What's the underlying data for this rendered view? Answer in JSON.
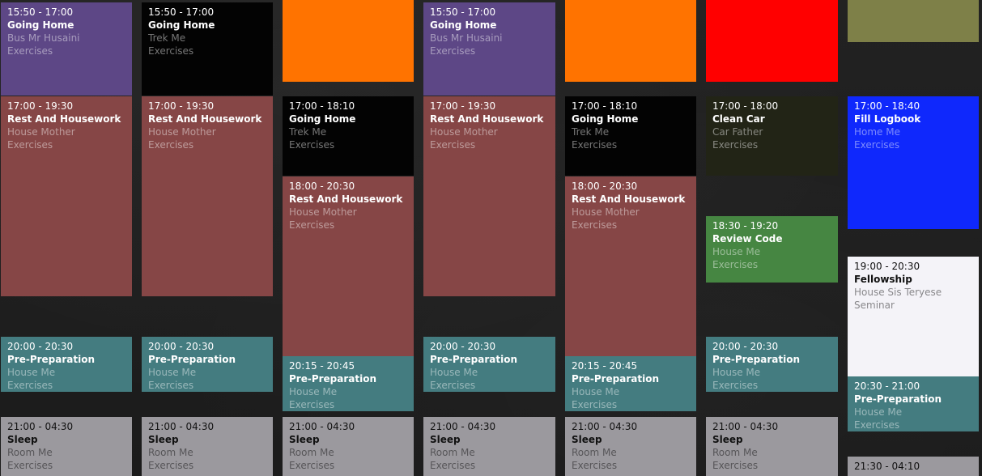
{
  "colors": {
    "purple": "#5d4786",
    "black": "#030303",
    "orange": "#ff7300",
    "red": "#ff0000",
    "olive": "#7e8048",
    "brown": "#864646",
    "dark_olive": "#222416",
    "blue": "#0f28fc",
    "green": "#468642",
    "white": "#f4f3f8",
    "teal": "#447c80",
    "gray": "#9b999e"
  },
  "columns": [
    {
      "events": [
        {
          "time": "15:50 - 17:00",
          "title": "Going Home",
          "location": "Bus Mr Husaini",
          "category": "Exercises"
        },
        {
          "time": "17:00 - 19:30",
          "title": "Rest And Housework",
          "location": "House Mother",
          "category": "Exercises"
        },
        {
          "time": "20:00 - 20:30",
          "title": "Pre-Preparation",
          "location": "House Me",
          "category": "Exercises"
        },
        {
          "time": "21:00 - 04:30",
          "title": "Sleep",
          "location": "Room Me",
          "category": "Exercises"
        }
      ]
    },
    {
      "events": [
        {
          "time": "15:50 - 17:00",
          "title": "Going Home",
          "location": "Trek Me",
          "category": "Exercises"
        },
        {
          "time": "17:00 - 19:30",
          "title": "Rest And Housework",
          "location": "House Mother",
          "category": "Exercises"
        },
        {
          "time": "20:00 - 20:30",
          "title": "Pre-Preparation",
          "location": "House Me",
          "category": "Exercises"
        },
        {
          "time": "21:00 - 04:30",
          "title": "Sleep",
          "location": "Room Me",
          "category": "Exercises"
        }
      ]
    },
    {
      "events": [
        {
          "time": "",
          "title": "",
          "location": "",
          "category": ""
        },
        {
          "time": "17:00 - 18:10",
          "title": "Going Home",
          "location": "Trek Me",
          "category": "Exercises"
        },
        {
          "time": "18:00 - 20:30",
          "title": "Rest And Housework",
          "location": "House Mother",
          "category": "Exercises"
        },
        {
          "time": "20:15 - 20:45",
          "title": "Pre-Preparation",
          "location": "House Me",
          "category": "Exercises"
        },
        {
          "time": "21:00 - 04:30",
          "title": "Sleep",
          "location": "Room Me",
          "category": "Exercises"
        }
      ]
    },
    {
      "events": [
        {
          "time": "15:50 - 17:00",
          "title": "Going Home",
          "location": "Bus Mr Husaini",
          "category": "Exercises"
        },
        {
          "time": "17:00 - 19:30",
          "title": "Rest And Housework",
          "location": "House Mother",
          "category": "Exercises"
        },
        {
          "time": "20:00 - 20:30",
          "title": "Pre-Preparation",
          "location": "House Me",
          "category": "Exercises"
        },
        {
          "time": "21:00 - 04:30",
          "title": "Sleep",
          "location": "Room Me",
          "category": "Exercises"
        }
      ]
    },
    {
      "events": [
        {
          "time": "",
          "title": "",
          "location": "",
          "category": ""
        },
        {
          "time": "17:00 - 18:10",
          "title": "Going Home",
          "location": "Trek Me",
          "category": "Exercises"
        },
        {
          "time": "18:00 - 20:30",
          "title": "Rest And Housework",
          "location": "House Mother",
          "category": "Exercises"
        },
        {
          "time": "20:15 - 20:45",
          "title": "Pre-Preparation",
          "location": "House Me",
          "category": "Exercises"
        },
        {
          "time": "21:00 - 04:30",
          "title": "Sleep",
          "location": "Room Me",
          "category": "Exercises"
        }
      ]
    },
    {
      "events": [
        {
          "time": "",
          "title": "",
          "location": "",
          "category": ""
        },
        {
          "time": "17:00 - 18:00",
          "title": "Clean Car",
          "location": "Car Father",
          "category": "Exercises"
        },
        {
          "time": "18:30 - 19:20",
          "title": "Review Code",
          "location": "House Me",
          "category": "Exercises"
        },
        {
          "time": "20:00 - 20:30",
          "title": "Pre-Preparation",
          "location": "House Me",
          "category": "Exercises"
        },
        {
          "time": "21:00 - 04:30",
          "title": "Sleep",
          "location": "Room Me",
          "category": "Exercises"
        }
      ]
    },
    {
      "events": [
        {
          "time": "",
          "title": "",
          "location": "",
          "category": ""
        },
        {
          "time": "17:00 - 18:40",
          "title": "Fill Logbook",
          "location": "Home Me",
          "category": "Exercises"
        },
        {
          "time": "19:00 - 20:30",
          "title": "Fellowship",
          "location": "House Sis Teryese",
          "category": "Seminar"
        },
        {
          "time": "20:30 - 21:00",
          "title": "Pre-Preparation",
          "location": "House Me",
          "category": "Exercises"
        },
        {
          "time": "21:30 - 04:10",
          "title": "",
          "location": "",
          "category": ""
        }
      ]
    }
  ]
}
